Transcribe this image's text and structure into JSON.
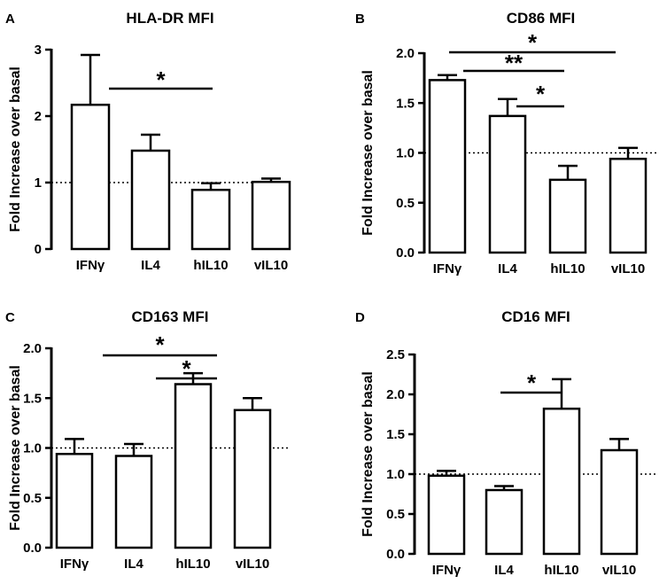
{
  "chart_data": [
    {
      "panel": "A",
      "type": "bar",
      "title": "HLA-DR MFI",
      "ylabel": "Fold Increase over basal",
      "xlabel": "",
      "categories": [
        "IFNγ",
        "IL4",
        "hIL10",
        "vIL10"
      ],
      "values": [
        2.17,
        1.48,
        0.89,
        1.01
      ],
      "errors": [
        0.75,
        0.24,
        0.1,
        0.05
      ],
      "ylim": [
        0,
        3
      ],
      "yticks": [
        "0",
        "1",
        "2",
        "3"
      ],
      "baseline": 1.0,
      "significance": [
        {
          "from": 0,
          "to": 2,
          "label": "*"
        }
      ]
    },
    {
      "panel": "B",
      "type": "bar",
      "title": "CD86 MFI",
      "ylabel": "Fold Increase over basal",
      "xlabel": "",
      "categories": [
        "IFNγ",
        "IL4",
        "hIL10",
        "vIL10"
      ],
      "values": [
        1.73,
        1.37,
        0.73,
        0.94
      ],
      "errors": [
        0.05,
        0.17,
        0.14,
        0.11
      ],
      "ylim": [
        0,
        2.0
      ],
      "yticks": [
        "0.0",
        "0.5",
        "1.0",
        "1.5",
        "2.0"
      ],
      "baseline": 1.0,
      "significance": [
        {
          "from": 0,
          "to": 3,
          "label": "*"
        },
        {
          "from": 0,
          "to": 2,
          "label": "**"
        },
        {
          "from": 1,
          "to": 2,
          "label": "*"
        }
      ]
    },
    {
      "panel": "C",
      "type": "bar",
      "title": "CD163 MFI",
      "ylabel": "Fold Increase over basal",
      "xlabel": "",
      "categories": [
        "IFNγ",
        "IL4",
        "hIL10",
        "vIL10"
      ],
      "values": [
        0.94,
        0.92,
        1.64,
        1.38
      ],
      "errors": [
        0.15,
        0.12,
        0.11,
        0.12
      ],
      "ylim": [
        0,
        2.0
      ],
      "yticks": [
        "0.0",
        "0.5",
        "1.0",
        "1.5",
        "2.0"
      ],
      "baseline": 1.0,
      "significance": [
        {
          "from": 0,
          "to": 2,
          "label": "*"
        },
        {
          "from": 1,
          "to": 2,
          "label": "*"
        }
      ]
    },
    {
      "panel": "D",
      "type": "bar",
      "title": "CD16 MFI",
      "ylabel": "Fold Increase over basal",
      "xlabel": "",
      "categories": [
        "IFNγ",
        "IL4",
        "hIL10",
        "vIL10"
      ],
      "values": [
        0.98,
        0.8,
        1.82,
        1.3
      ],
      "errors": [
        0.06,
        0.05,
        0.37,
        0.14
      ],
      "ylim": [
        0,
        2.5
      ],
      "yticks": [
        "0.0",
        "0.5",
        "1.0",
        "1.5",
        "2.0",
        "2.5"
      ],
      "baseline": 1.0,
      "significance": [
        {
          "from": 1,
          "to": 2,
          "label": "*"
        }
      ]
    }
  ]
}
